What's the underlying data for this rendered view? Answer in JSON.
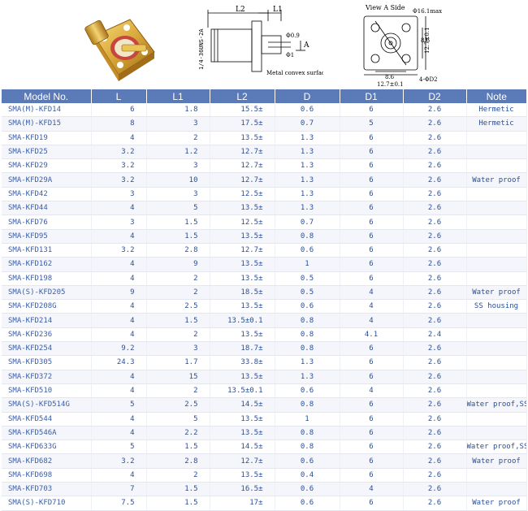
{
  "figures": {
    "dims": {
      "l2": "L2",
      "l1": "L1",
      "thread": "1/4-36UNS-2A",
      "d": "Φ0.9",
      "d1": "Φ1",
      "arrow_a": "A",
      "surface_note": "Metal convex surface"
    },
    "view": {
      "title": "View A Side",
      "d16": "Φ16.1max",
      "d12": "12.7±0.1",
      "d86": "8.6",
      "d2": "4-ΦD2",
      "b86": "8.6",
      "b127": "12.7±0.1"
    }
  },
  "table": {
    "headers": [
      "Model No.",
      "L",
      "L1",
      "L2",
      "D",
      "D1",
      "D2",
      "Note"
    ],
    "rows": [
      [
        "SMA(M)-KFD14",
        "6",
        "1.8",
        "15.5±",
        "0.6",
        "6",
        "2.6",
        "Hermetic"
      ],
      [
        "SMA(M)-KFD15",
        "8",
        "3",
        "17.5±",
        "0.7",
        "5",
        "2.6",
        "Hermetic"
      ],
      [
        "SMA-KFD19",
        "4",
        "2",
        "13.5±",
        "1.3",
        "6",
        "2.6",
        ""
      ],
      [
        "SMA-KFD25",
        "3.2",
        "1.2",
        "12.7±",
        "1.3",
        "6",
        "2.6",
        ""
      ],
      [
        "SMA-KFD29",
        "3.2",
        "3",
        "12.7±",
        "1.3",
        "6",
        "2.6",
        ""
      ],
      [
        "SMA-KFD29A",
        "3.2",
        "10",
        "12.7±",
        "1.3",
        "6",
        "2.6",
        "Water proof"
      ],
      [
        "SMA-KFD42",
        "3",
        "3",
        "12.5±",
        "1.3",
        "6",
        "2.6",
        ""
      ],
      [
        "SMA-KFD44",
        "4",
        "5",
        "13.5±",
        "1.3",
        "6",
        "2.6",
        ""
      ],
      [
        "SMA-KFD76",
        "3",
        "1.5",
        "12.5±",
        "0.7",
        "6",
        "2.6",
        ""
      ],
      [
        "SMA-KFD95",
        "4",
        "1.5",
        "13.5±",
        "0.8",
        "6",
        "2.6",
        ""
      ],
      [
        "SMA-KFD131",
        "3.2",
        "2.8",
        "12.7±",
        "0.6",
        "6",
        "2.6",
        ""
      ],
      [
        "SMA-KFD162",
        "4",
        "9",
        "13.5±",
        "1",
        "6",
        "2.6",
        ""
      ],
      [
        "SMA-KFD198",
        "4",
        "2",
        "13.5±",
        "0.5",
        "6",
        "2.6",
        ""
      ],
      [
        "SMA(S)-KFD205",
        "9",
        "2",
        "18.5±",
        "0.5",
        "4",
        "2.6",
        "Water proof"
      ],
      [
        "SMA-KFD208G",
        "4",
        "2.5",
        "13.5±",
        "0.6",
        "4",
        "2.6",
        "SS housing"
      ],
      [
        "SMA-KFD214",
        "4",
        "1.5",
        "13.5±0.1",
        "0.8",
        "4",
        "2.6",
        ""
      ],
      [
        "SMA-KFD236",
        "4",
        "2",
        "13.5±",
        "0.8",
        "4.1",
        "2.4",
        ""
      ],
      [
        "SMA-KFD254",
        "9.2",
        "3",
        "18.7±",
        "0.8",
        "6",
        "2.6",
        ""
      ],
      [
        "SMA-KFD305",
        "24.3",
        "1.7",
        "33.8±",
        "1.3",
        "6",
        "2.6",
        ""
      ],
      [
        "SMA-KFD372",
        "4",
        "15",
        "13.5±",
        "1.3",
        "6",
        "2.6",
        ""
      ],
      [
        "SMA-KFD510",
        "4",
        "2",
        "13.5±0.1",
        "0.6",
        "4",
        "2.6",
        ""
      ],
      [
        "SMA(S)-KFD514G",
        "5",
        "2.5",
        "14.5±",
        "0.8",
        "6",
        "2.6",
        "Water proof,SS"
      ],
      [
        "SMA-KFD544",
        "4",
        "5",
        "13.5±",
        "1",
        "6",
        "2.6",
        ""
      ],
      [
        "SMA-KFD546A",
        "4",
        "2.2",
        "13.5±",
        "0.8",
        "6",
        "2.6",
        ""
      ],
      [
        "SMA-KFD633G",
        "5",
        "1.5",
        "14.5±",
        "0.8",
        "6",
        "2.6",
        "Water proof,SS"
      ],
      [
        "SMA-KFD682",
        "3.2",
        "2.8",
        "12.7±",
        "0.6",
        "6",
        "2.6",
        "Water proof"
      ],
      [
        "SMA-KFD698",
        "4",
        "2",
        "13.5±",
        "0.4",
        "6",
        "2.6",
        ""
      ],
      [
        "SMA-KFD703",
        "7",
        "1.5",
        "16.5±",
        "0.6",
        "4",
        "2.6",
        ""
      ],
      [
        "SMA(S)-KFD710",
        "7.5",
        "1.5",
        "17±",
        "0.6",
        "6",
        "2.6",
        "Water proof"
      ]
    ]
  }
}
